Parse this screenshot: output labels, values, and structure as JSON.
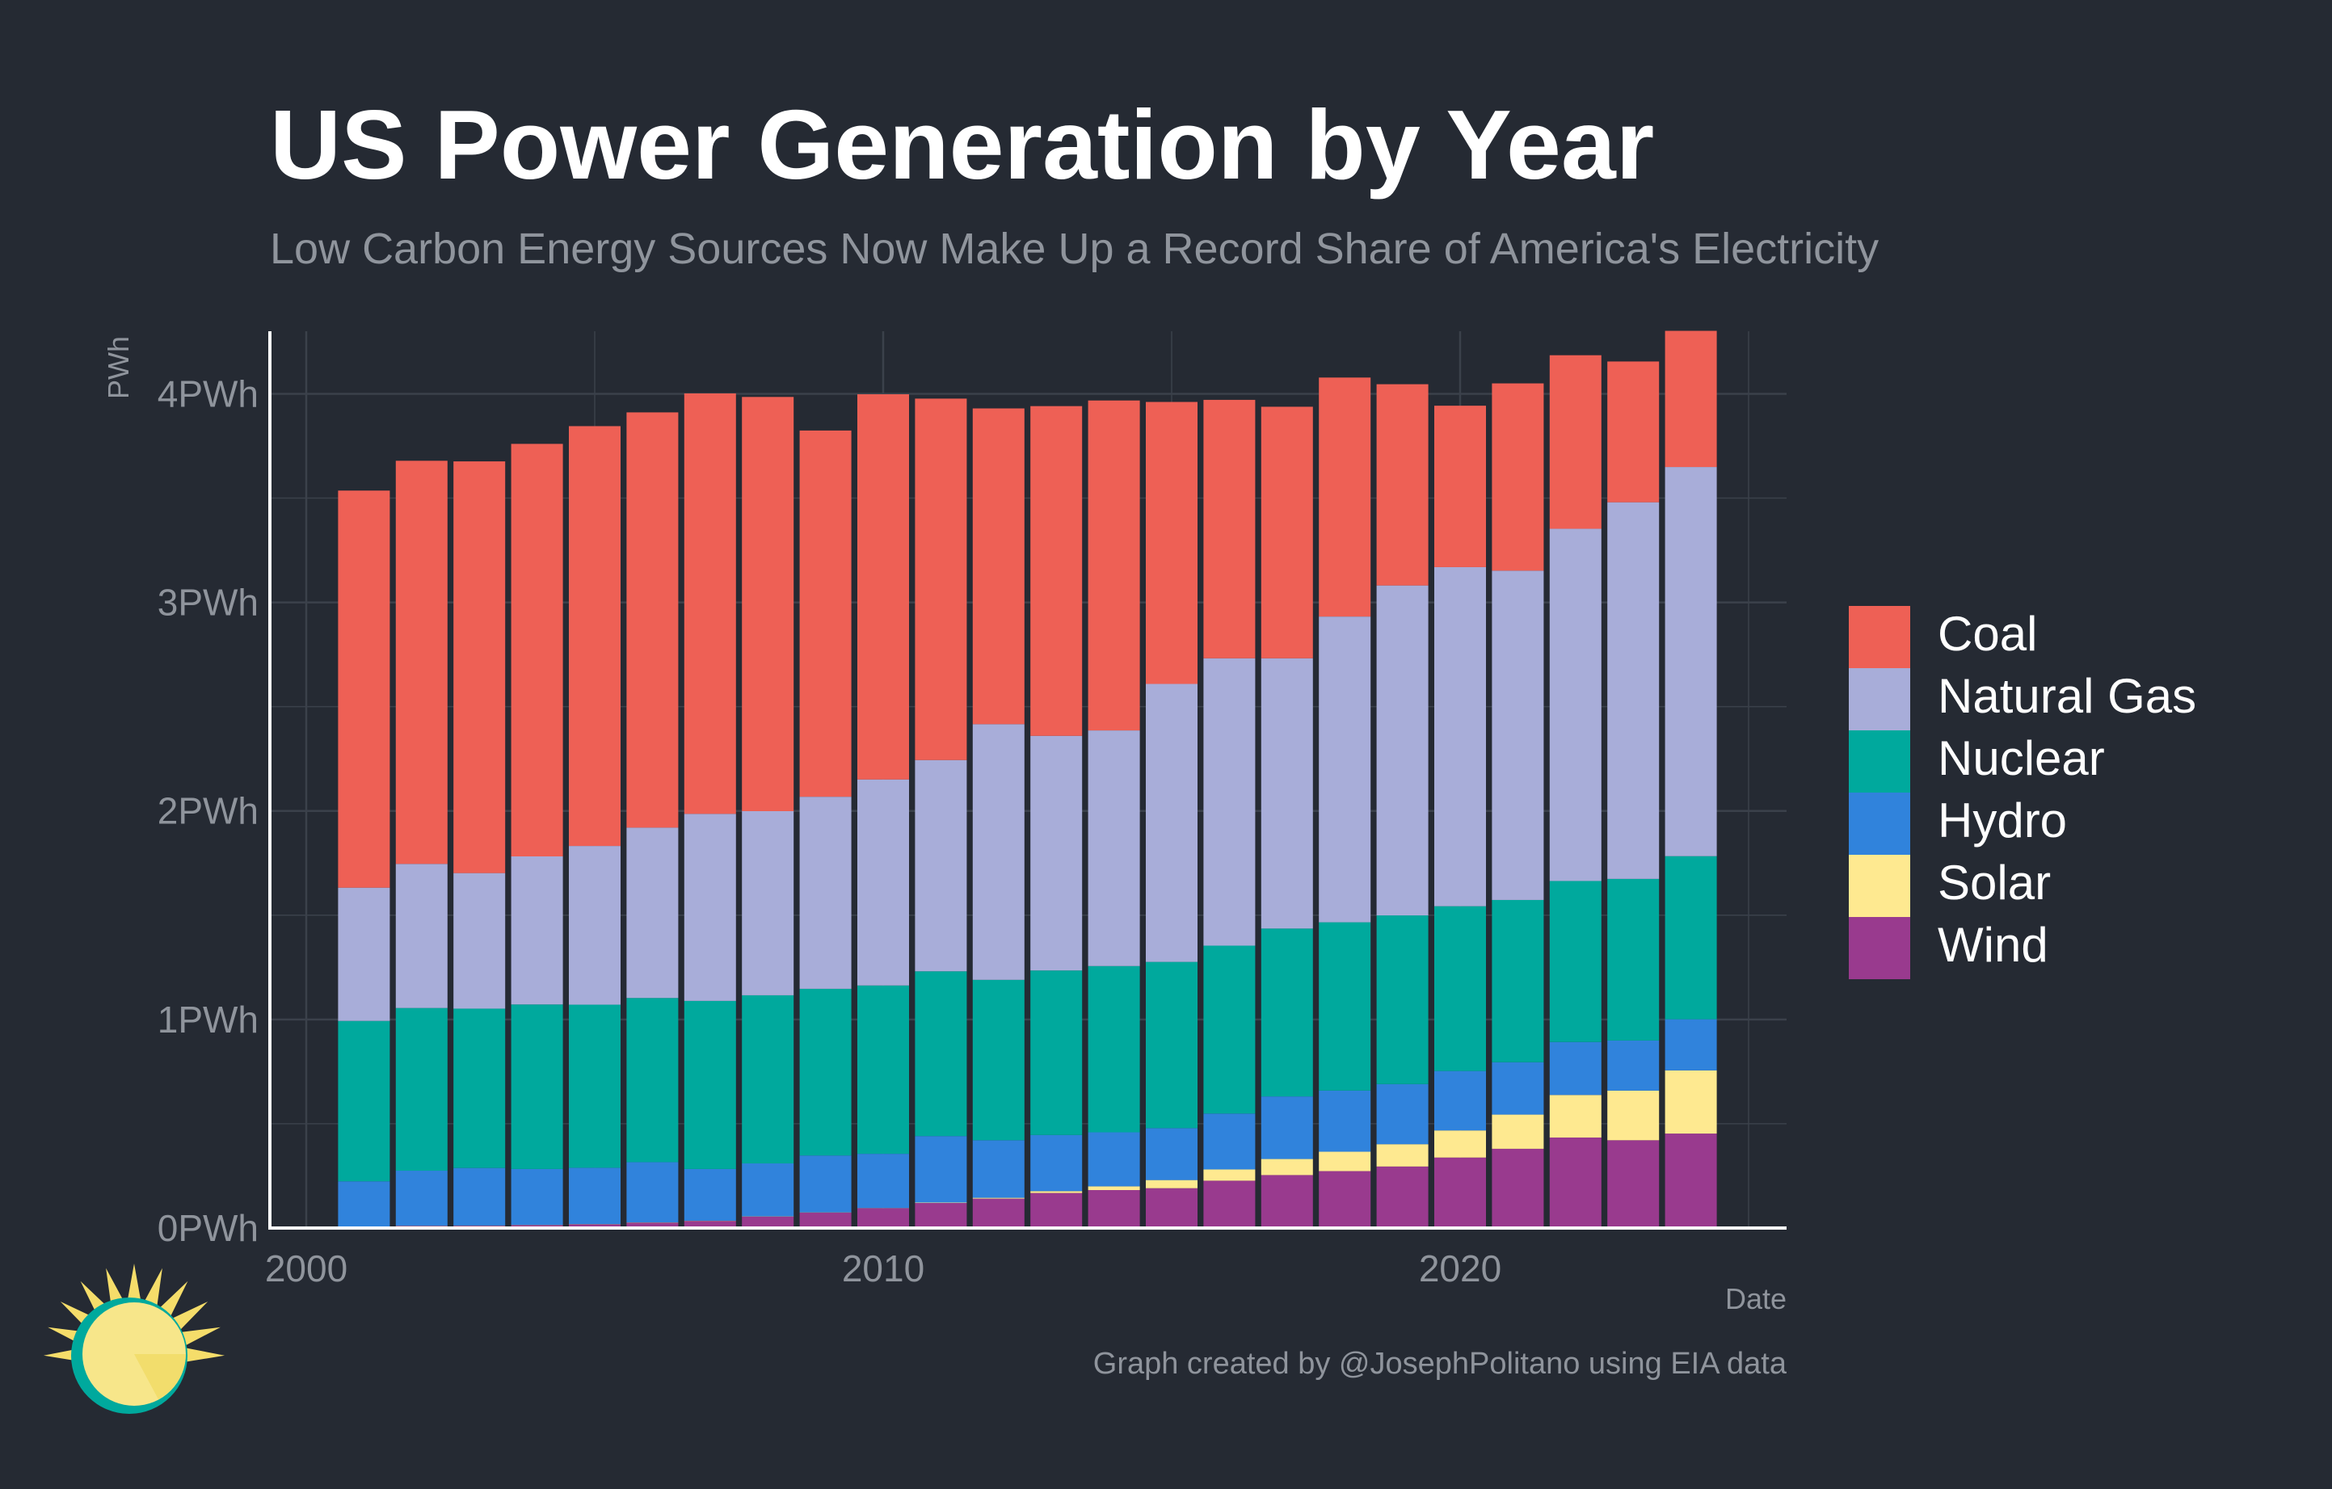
{
  "title": "US Power Generation by Year",
  "subtitle": "Low Carbon Energy Sources Now Make Up a Record Share of America's Electricity",
  "caption": "Graph created by @JosephPolitano using EIA data",
  "logo": {
    "icon": "sun-logo-icon",
    "colors": {
      "ring": "#00a99d",
      "disc": "#f7e68a",
      "rays": "#f5dd6a"
    }
  },
  "chart_data": {
    "type": "bar",
    "stacked": true,
    "xlabel": "Date",
    "ylabel": "PWh",
    "ylim": [
      0,
      4.3
    ],
    "xlim": [
      2000,
      2025
    ],
    "x_ticks": [
      {
        "value": 2000,
        "label": "2000"
      },
      {
        "value": 2010,
        "label": "2010"
      },
      {
        "value": 2020,
        "label": "2020"
      }
    ],
    "y_ticks": [
      {
        "value": 0,
        "label": "0PWh"
      },
      {
        "value": 1,
        "label": "1PWh"
      },
      {
        "value": 2,
        "label": "2PWh"
      },
      {
        "value": 3,
        "label": "3PWh"
      },
      {
        "value": 4,
        "label": "4PWh"
      }
    ],
    "grid": true,
    "legend_position": "right",
    "x": [
      2001,
      2002,
      2003,
      2004,
      2005,
      2006,
      2007,
      2008,
      2009,
      2010,
      2011,
      2012,
      2013,
      2014,
      2015,
      2016,
      2017,
      2018,
      2019,
      2020,
      2021,
      2022,
      2023,
      2024
    ],
    "series": [
      {
        "name": "Wind",
        "color": "#993a8e",
        "values": [
          0.006,
          0.01,
          0.011,
          0.014,
          0.018,
          0.026,
          0.034,
          0.055,
          0.074,
          0.095,
          0.12,
          0.141,
          0.168,
          0.182,
          0.191,
          0.227,
          0.254,
          0.273,
          0.295,
          0.338,
          0.38,
          0.434,
          0.421,
          0.453
        ]
      },
      {
        "name": "Solar",
        "color": "#fee990",
        "values": [
          0.001,
          0.001,
          0.001,
          0.001,
          0.001,
          0.001,
          0.001,
          0.001,
          0.001,
          0.001,
          0.002,
          0.004,
          0.009,
          0.018,
          0.039,
          0.054,
          0.077,
          0.093,
          0.107,
          0.13,
          0.164,
          0.204,
          0.238,
          0.303
        ]
      },
      {
        "name": "Hydro",
        "color": "#3083dc",
        "values": [
          0.217,
          0.264,
          0.276,
          0.268,
          0.27,
          0.289,
          0.248,
          0.254,
          0.273,
          0.26,
          0.319,
          0.276,
          0.269,
          0.259,
          0.249,
          0.268,
          0.3,
          0.293,
          0.288,
          0.285,
          0.251,
          0.254,
          0.24,
          0.245
        ]
      },
      {
        "name": "Nuclear",
        "color": "#00a99d",
        "values": [
          0.769,
          0.78,
          0.764,
          0.789,
          0.782,
          0.787,
          0.806,
          0.806,
          0.799,
          0.807,
          0.79,
          0.769,
          0.789,
          0.797,
          0.797,
          0.805,
          0.805,
          0.807,
          0.809,
          0.79,
          0.778,
          0.772,
          0.775,
          0.782
        ]
      },
      {
        "name": "Natural Gas",
        "color": "#a8add9",
        "values": [
          0.639,
          0.691,
          0.65,
          0.71,
          0.761,
          0.817,
          0.897,
          0.883,
          0.921,
          0.988,
          1.013,
          1.226,
          1.125,
          1.13,
          1.333,
          1.378,
          1.296,
          1.466,
          1.582,
          1.626,
          1.579,
          1.689,
          1.806,
          1.866
        ]
      },
      {
        "name": "Coal",
        "color": "#ee6055",
        "values": [
          1.904,
          1.933,
          1.974,
          1.978,
          2.013,
          1.991,
          2.016,
          1.986,
          1.756,
          1.847,
          1.733,
          1.514,
          1.581,
          1.582,
          1.352,
          1.239,
          1.206,
          1.146,
          0.965,
          0.774,
          0.898,
          0.832,
          0.675,
          0.653
        ]
      }
    ],
    "legend_order": [
      "Coal",
      "Natural Gas",
      "Nuclear",
      "Hydro",
      "Solar",
      "Wind"
    ]
  }
}
